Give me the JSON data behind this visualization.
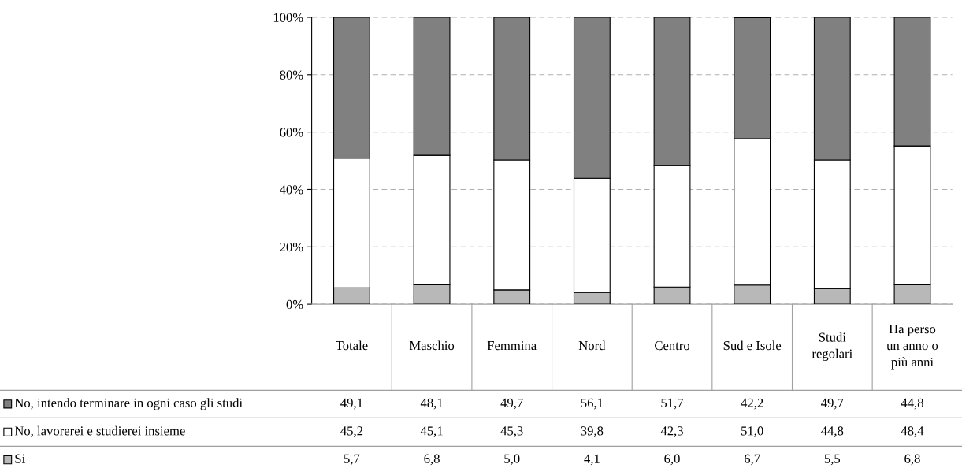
{
  "chart_data": {
    "type": "bar",
    "stacked": true,
    "categories": [
      "Totale",
      "Maschio",
      "Femmina",
      "Nord",
      "Centro",
      "Sud e Isole",
      "Studi\nregolari",
      "Ha perso\nun anno o\npiù anni"
    ],
    "series": [
      {
        "name": "Si",
        "color": "#b8b8b8",
        "values": [
          5.7,
          6.8,
          5.0,
          4.1,
          6.0,
          6.7,
          5.5,
          6.8
        ],
        "value_labels": [
          "5,7",
          "6,8",
          "5,0",
          "4,1",
          "6,0",
          "6,7",
          "5,5",
          "6,8"
        ]
      },
      {
        "name": "No, lavorerei e studierei insieme",
        "color": "#ffffff",
        "values": [
          45.2,
          45.1,
          45.3,
          39.8,
          42.3,
          51.0,
          44.8,
          48.4
        ],
        "value_labels": [
          "45,2",
          "45,1",
          "45,3",
          "39,8",
          "42,3",
          "51,0",
          "44,8",
          "48,4"
        ]
      },
      {
        "name": "No, intendo terminare in ogni caso gli studi",
        "color": "#808080",
        "values": [
          49.1,
          48.1,
          49.7,
          56.1,
          51.7,
          42.2,
          49.7,
          44.8
        ],
        "value_labels": [
          "49,1",
          "48,1",
          "49,7",
          "56,1",
          "51,7",
          "42,2",
          "49,7",
          "44,8"
        ]
      }
    ],
    "ylim": [
      0,
      100
    ],
    "yticks": [
      {
        "value": 0,
        "label": "0%"
      },
      {
        "value": 20,
        "label": "20%"
      },
      {
        "value": 40,
        "label": "40%"
      },
      {
        "value": 60,
        "label": "60%"
      },
      {
        "value": 80,
        "label": "80%"
      },
      {
        "value": 100,
        "label": "100%"
      }
    ],
    "grid": "y",
    "legend": "bottom left"
  }
}
